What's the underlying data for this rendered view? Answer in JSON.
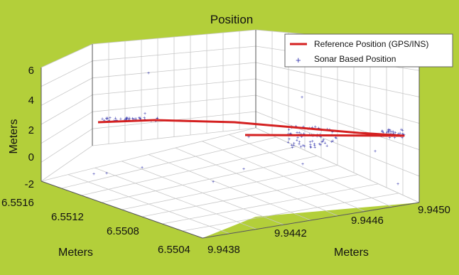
{
  "chart_data": {
    "type": "scatter",
    "title": "Position",
    "zlabel": "Meters",
    "ylabel": "Meters",
    "xlabel": "Meters",
    "z_ticks": [
      "6",
      "4",
      "2",
      "0",
      "-2"
    ],
    "y_ticks": [
      "6.5516",
      "6.5512",
      "6.5508",
      "6.5504"
    ],
    "x_ticks": [
      "9.9438",
      "9.9442",
      "9.9446",
      "9.9450"
    ],
    "legend_position": "top-right",
    "grid": true,
    "series": [
      {
        "name": "Reference Position (GPS/INS)",
        "kind": "line",
        "color": "#d42020"
      },
      {
        "name": "Sonar Based Position",
        "kind": "scatter",
        "color": "#3a3cb0"
      }
    ]
  }
}
